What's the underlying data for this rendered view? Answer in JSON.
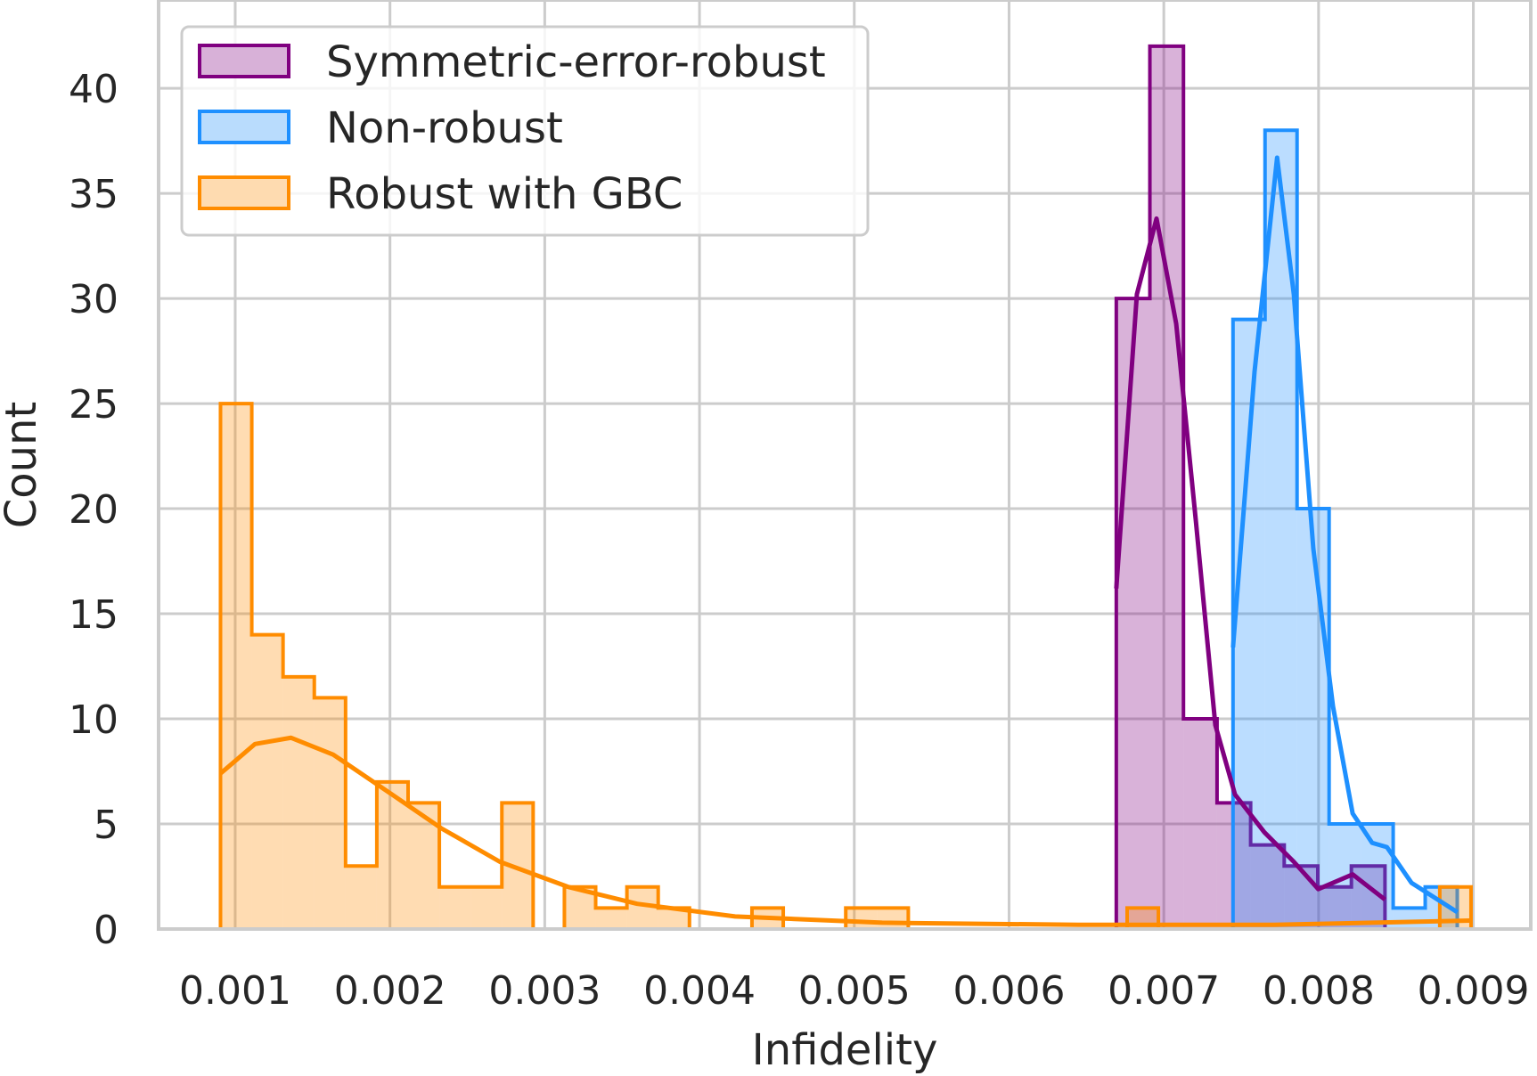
{
  "chart_data": {
    "type": "histogram-kde",
    "title": "",
    "xlabel": "Infidelity",
    "ylabel": "Count",
    "xlim": [
      0.000505,
      0.009371
    ],
    "ylim": [
      0,
      44.2
    ],
    "grid": true,
    "legend_position": "top-left",
    "x_ticks": [
      0.001,
      0.002,
      0.003,
      0.004,
      0.005,
      0.006,
      0.007,
      0.008,
      0.009
    ],
    "x_tick_labels": [
      "0.001",
      "0.002",
      "0.003",
      "0.004",
      "0.005",
      "0.006",
      "0.007",
      "0.008",
      "0.009"
    ],
    "y_ticks": [
      0,
      5,
      10,
      15,
      20,
      25,
      30,
      35,
      40
    ],
    "y_tick_labels": [
      "0",
      "5",
      "10",
      "15",
      "20",
      "25",
      "30",
      "35",
      "40"
    ],
    "series": [
      {
        "name": "Symmetric-error-robust",
        "color": "#800080",
        "fill": "#d8b1d8",
        "bin_start": 0.006693,
        "bin_width": 0.000217,
        "counts": [
          30,
          42,
          10,
          6,
          4,
          3,
          2,
          3
        ],
        "kde": [
          [
            0.006693,
            16.2
          ],
          [
            0.006826,
            30.2
          ],
          [
            0.006953,
            33.8
          ],
          [
            0.00708,
            28.8
          ],
          [
            0.007206,
            19.5
          ],
          [
            0.007333,
            9.7
          ],
          [
            0.00746,
            6.4
          ],
          [
            0.00765,
            4.6
          ],
          [
            0.00784,
            3.2
          ],
          [
            0.007998,
            1.9
          ],
          [
            0.00822,
            2.6
          ],
          [
            0.008429,
            1.4
          ]
        ]
      },
      {
        "name": "Non-robust",
        "color": "#1e90ff",
        "fill": "#b9dcfd",
        "bin_start": 0.007447,
        "bin_width": 0.000207,
        "counts": [
          29,
          38,
          20,
          5,
          5,
          1,
          2
        ],
        "kde": [
          [
            0.007447,
            13.4
          ],
          [
            0.007586,
            26.5
          ],
          [
            0.007732,
            36.7
          ],
          [
            0.00784,
            30.2
          ],
          [
            0.007966,
            18.1
          ],
          [
            0.008093,
            10.6
          ],
          [
            0.00822,
            5.5
          ],
          [
            0.008346,
            4.1
          ],
          [
            0.008441,
            3.9
          ],
          [
            0.0086,
            2.2
          ],
          [
            0.008897,
            0.8
          ]
        ]
      },
      {
        "name": "Robust with GBC",
        "color": "#ff8c00",
        "fill": "#fedbb0",
        "bin_start": 0.000905,
        "bin_width": 0.000202,
        "counts": [
          25,
          14,
          12,
          11,
          3,
          7,
          6,
          2,
          2,
          6,
          0,
          2,
          1,
          2,
          1,
          0,
          0,
          1,
          0,
          0,
          1,
          1,
          0,
          0,
          0,
          0,
          0,
          0,
          0,
          1,
          0,
          0,
          0,
          0,
          0,
          0,
          0,
          0,
          0,
          2
        ],
        "kde": [
          [
            0.000905,
            7.4
          ],
          [
            0.001127,
            8.8
          ],
          [
            0.001361,
            9.1
          ],
          [
            0.001633,
            8.3
          ],
          [
            0.002013,
            6.4
          ],
          [
            0.00233,
            4.8
          ],
          [
            0.00271,
            3.2
          ],
          [
            0.003153,
            2.0
          ],
          [
            0.003597,
            1.2
          ],
          [
            0.00423,
            0.6
          ],
          [
            0.00518,
            0.3
          ],
          [
            0.006447,
            0.2
          ],
          [
            0.007713,
            0.2
          ],
          [
            0.00898,
            0.4
          ]
        ]
      }
    ]
  }
}
